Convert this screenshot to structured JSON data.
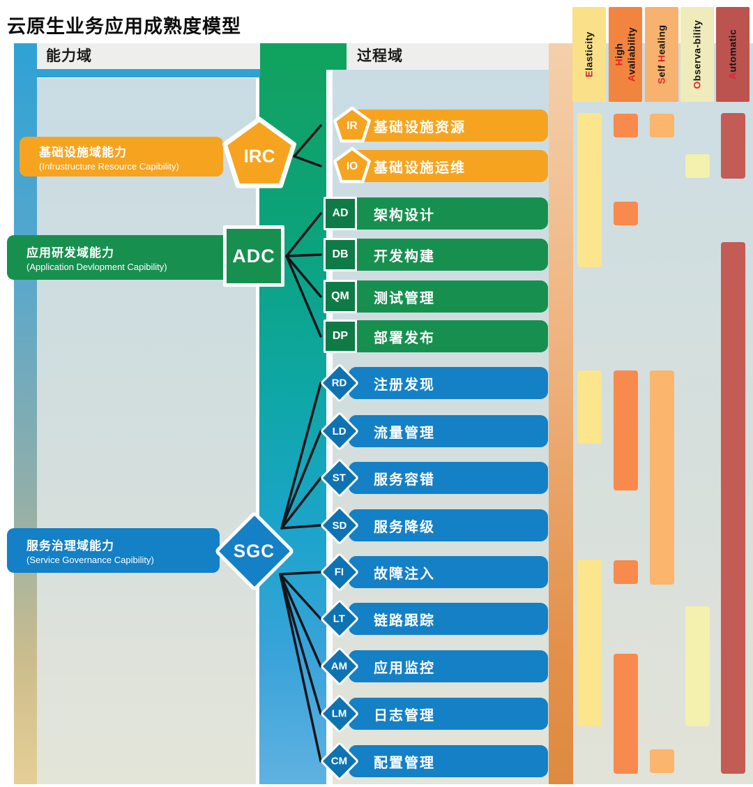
{
  "title": "云原生业务应用成熟度模型",
  "headers": {
    "capability": "能力域",
    "process": "过程域"
  },
  "colors": {
    "line": "#15151A",
    "capability_header_bg": "#EEEFED",
    "capability_underline": "#2FA2D5",
    "red_letter": "#E3252B"
  },
  "groups": [
    {
      "abbr": "IRC",
      "shape": "pentagon",
      "color": "#F6A41F",
      "badge_color": "#F6A41F",
      "label": "基础设施域能力",
      "sublabel": "(Infrustructure Resource Capibility)",
      "processes": [
        {
          "code": "IR",
          "name": "基础设施资源"
        },
        {
          "code": "IO",
          "name": "基础设施运维"
        }
      ]
    },
    {
      "abbr": "ADC",
      "shape": "square",
      "color": "#17904F",
      "badge_color": "#0E7B46",
      "label": "应用研发域能力",
      "sublabel": "(Application Devlopment Capibility)",
      "processes": [
        {
          "code": "AD",
          "name": "架构设计"
        },
        {
          "code": "DB",
          "name": "开发构建"
        },
        {
          "code": "QM",
          "name": "测试管理"
        },
        {
          "code": "DP",
          "name": "部署发布"
        }
      ]
    },
    {
      "abbr": "SGC",
      "shape": "diamond",
      "color": "#1480C6",
      "badge_color": "#0E73B2",
      "label": "服务治理域能力",
      "sublabel": "(Service Governance Capibility)",
      "processes": [
        {
          "code": "RD",
          "name": "注册发现"
        },
        {
          "code": "LD",
          "name": "流量管理"
        },
        {
          "code": "ST",
          "name": "服务容错"
        },
        {
          "code": "SD",
          "name": "服务降级"
        },
        {
          "code": "FI",
          "name": "故障注入"
        },
        {
          "code": "LT",
          "name": "链路跟踪"
        },
        {
          "code": "AM",
          "name": "应用监控"
        },
        {
          "code": "LM",
          "name": "日志管理"
        },
        {
          "code": "CM",
          "name": "配置管理"
        }
      ]
    }
  ],
  "matrix": {
    "columns": [
      {
        "id": "elasticity",
        "header_bg": "#FAE189",
        "bar_color": "#FBE58D",
        "lines": [
          [
            [
              "red",
              "E"
            ],
            [
              "black",
              "lasticity"
            ]
          ]
        ],
        "bars": [
          {
            "from": "IR",
            "to": "DB"
          },
          {
            "from": "RD",
            "to": "LD"
          },
          {
            "from": "FI",
            "to": "LM"
          }
        ]
      },
      {
        "id": "high-availability",
        "header_bg": "#F1853F",
        "bar_color": "#F98A4D",
        "lines": [
          [
            [
              "red",
              "H"
            ],
            [
              "black",
              "igh"
            ]
          ],
          [
            [
              "red",
              "A"
            ],
            [
              "black",
              "valiability"
            ]
          ]
        ],
        "bars": [
          {
            "from": "IR",
            "to": "IR"
          },
          {
            "from": "AD",
            "to": "AD"
          },
          {
            "from": "RD",
            "to": "ST"
          },
          {
            "from": "FI",
            "to": "FI"
          },
          {
            "from": "AM",
            "to": "CM"
          }
        ]
      },
      {
        "id": "self-healing",
        "header_bg": "#F6B26E",
        "bar_color": "#FBB56D",
        "lines": [
          [
            [
              "red",
              "S"
            ],
            [
              "black",
              "elf "
            ],
            [
              "red",
              "H"
            ],
            [
              "black",
              "ealing"
            ]
          ]
        ],
        "bars": [
          {
            "from": "IR",
            "to": "IR"
          },
          {
            "from": "RD",
            "to": "FI"
          },
          {
            "from": "CM",
            "to": "CM"
          }
        ]
      },
      {
        "id": "observability",
        "header_bg": "#F0EBBB",
        "bar_color": "#F4F0AE",
        "lines": [
          [
            [
              "red",
              "O"
            ],
            [
              "black",
              "bserva-bility"
            ]
          ]
        ],
        "bars": [
          {
            "from": "IO",
            "to": "IO"
          },
          {
            "from": "LT",
            "to": "LM"
          }
        ]
      },
      {
        "id": "automatic",
        "header_bg": "#BC534E",
        "bar_color": "#C35C55",
        "lines": [
          [
            [
              "red",
              "A"
            ],
            [
              "black",
              "utomatic"
            ]
          ]
        ],
        "bars": [
          {
            "from": "IR",
            "to": "IO"
          },
          {
            "from": "DB",
            "to": "CM"
          }
        ]
      }
    ]
  }
}
